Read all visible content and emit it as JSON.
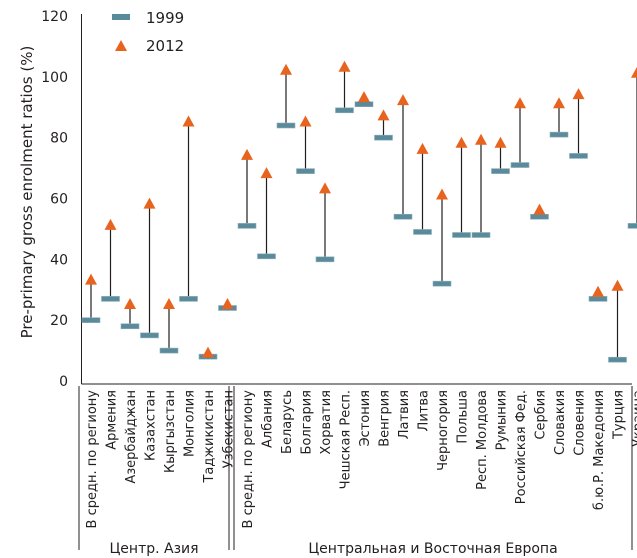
{
  "chart_data": {
    "type": "dumbbell",
    "ylabel": "Pre-primary gross enrolment ratios (%)",
    "ylim": [
      0,
      120
    ],
    "yticks": [
      0,
      20,
      40,
      60,
      80,
      100,
      120
    ],
    "grid": false,
    "legend": {
      "placement": "top-left",
      "entries": [
        {
          "label": "1999",
          "marker": "dash"
        },
        {
          "label": "2012",
          "marker": "triangle"
        }
      ]
    },
    "colors": {
      "series_1999": "#5b8a9a",
      "series_2012": "#e8641e",
      "line": "#231f20",
      "text": "#231f20"
    },
    "groups": [
      {
        "label": "Центр. Азия",
        "start": 0,
        "end": 6
      },
      {
        "label": "Центральная и Восточная Европа",
        "start": 7,
        "end": 26
      }
    ],
    "categories": [
      "В средн. по региону",
      "Армения",
      "Азербайджан",
      "Казахстан",
      "Кыргызстан",
      "Монголия",
      "Таджикистан",
      "Узбекистан",
      "В средн. по региону",
      "Албания",
      "Беларусь",
      "Болгария",
      "Хорватия",
      "Чешская Респ.",
      "Эстония",
      "Венгрия",
      "Латвия",
      "Литва",
      "Черногория",
      "Польша",
      "Респ. Молдова",
      "Румыния",
      "Российская Фед.",
      "Сербия",
      "Словакия",
      "Словения",
      "б.ю.Р. Македония",
      "Турция",
      "Украина"
    ],
    "series": [
      {
        "name": "1999",
        "values": [
          20,
          27,
          18,
          15,
          10,
          27,
          8,
          24,
          51,
          41,
          84,
          69,
          40,
          89,
          91,
          80,
          54,
          49,
          32,
          48,
          48,
          69,
          71,
          54,
          81,
          74,
          27,
          7,
          51
        ]
      },
      {
        "name": "2012",
        "values": [
          33,
          51,
          25,
          58,
          25,
          85,
          9,
          25,
          74,
          68,
          102,
          85,
          63,
          103,
          93,
          87,
          92,
          76,
          61,
          78,
          79,
          78,
          91,
          56,
          91,
          94,
          29,
          31,
          101
        ]
      }
    ]
  }
}
